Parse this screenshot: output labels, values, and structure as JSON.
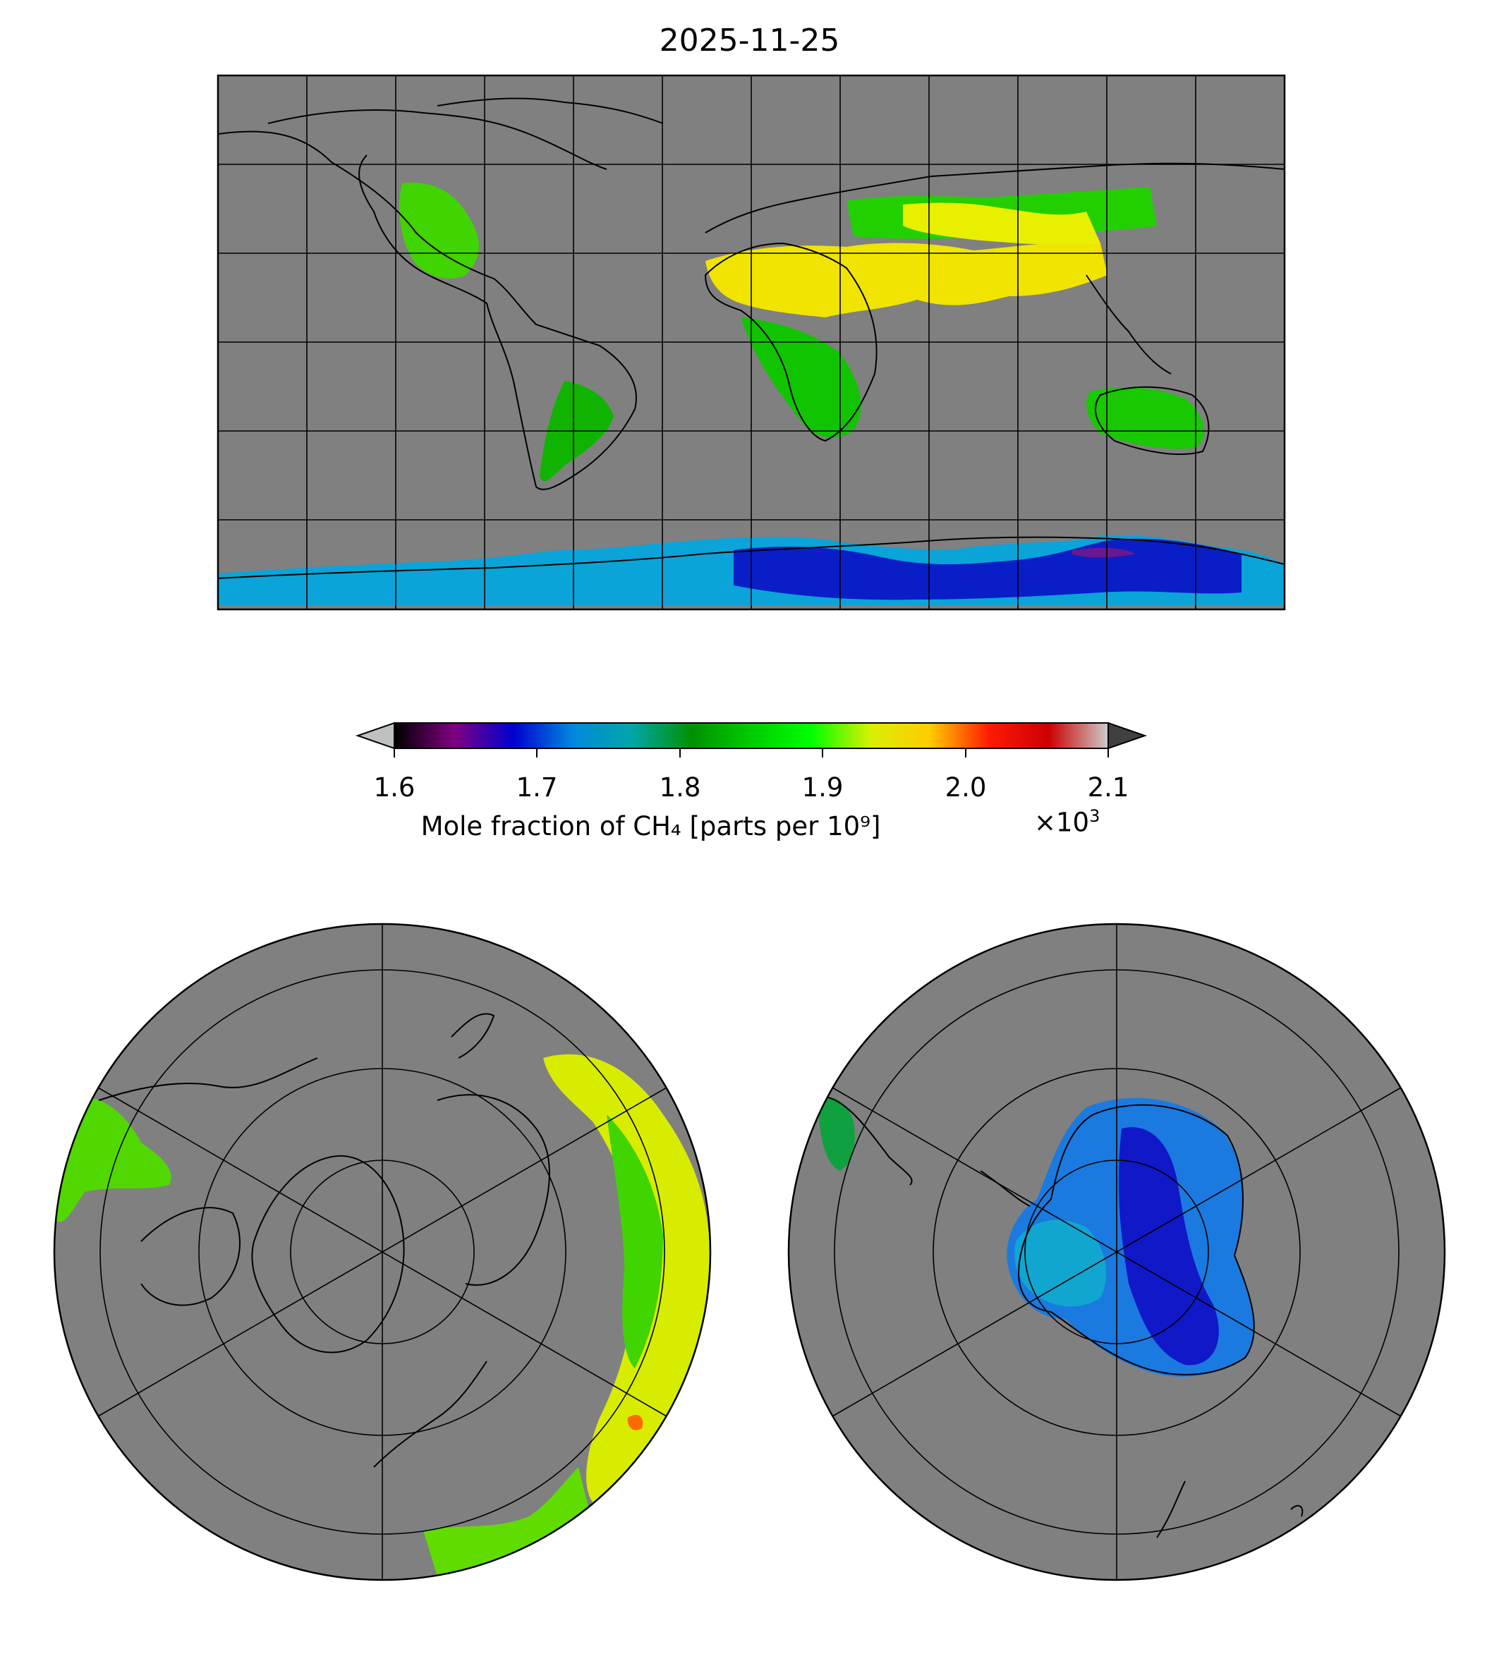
{
  "title": "2025-11-25",
  "colorbar": {
    "label": "Mole fraction of CH₄ [parts per 10⁹]",
    "multiplier": "×10",
    "multiplier_exponent": "3",
    "ticks": [
      "1.6",
      "1.7",
      "1.8",
      "1.9",
      "2.0",
      "2.1"
    ],
    "range": [
      1.6,
      2.1
    ],
    "extend": "both",
    "under_color": "#c0c0c0",
    "over_color": "#404040",
    "colormap": "nipy_spectral",
    "stops": [
      "#000000",
      "#7f007f",
      "#0000d0",
      "#0088dd",
      "#00a6a6",
      "#009000",
      "#00cc00",
      "#00ff00",
      "#d8f000",
      "#ffcc00",
      "#ff1a00",
      "#cc0000",
      "#cccccc"
    ]
  },
  "maps": {
    "missing_color": "#808080",
    "global": {
      "projection": "equirectangular",
      "lon_range": [
        -180,
        180
      ],
      "lat_range": [
        -90,
        90
      ],
      "gridlines_lon_step": 30,
      "gridlines_lat_step": 30
    },
    "north_polar": {
      "projection": "north-polar-stereographic",
      "gridlines": true
    },
    "south_polar": {
      "projection": "south-polar-stereographic",
      "gridlines": true
    }
  }
}
